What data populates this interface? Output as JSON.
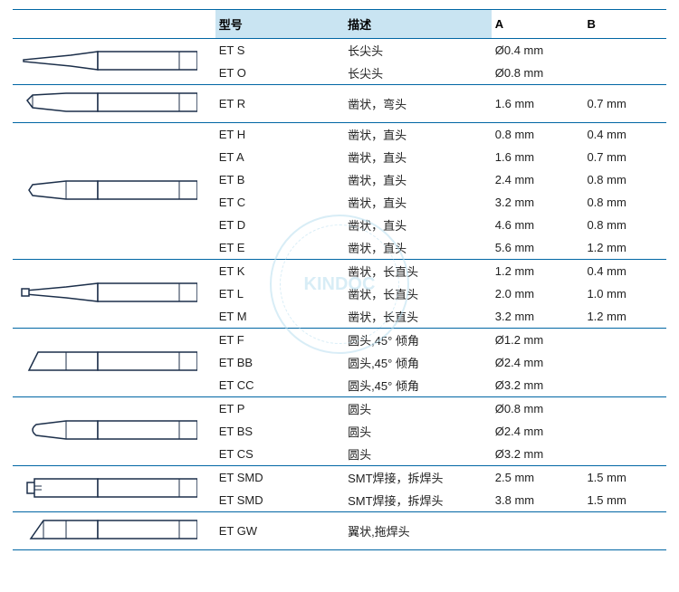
{
  "table": {
    "columns": {
      "icon": "",
      "model": "型号",
      "desc": "描述",
      "a": "A",
      "b": "B"
    },
    "header_bg": "#c9e4f2",
    "border_color": "#0066a4",
    "groups": [
      {
        "tip_shape": "conical",
        "rows": [
          {
            "model": "ET S",
            "desc": "长尖头",
            "a": "Ø0.4 mm",
            "b": ""
          },
          {
            "model": "ET O",
            "desc": "长尖头",
            "a": "Ø0.8 mm",
            "b": ""
          }
        ]
      },
      {
        "tip_shape": "chisel-bent",
        "rows": [
          {
            "model": "ET R",
            "desc": "凿状，弯头",
            "a": "1.6 mm",
            "b": "0.7 mm"
          }
        ]
      },
      {
        "tip_shape": "chisel",
        "rows": [
          {
            "model": "ET H",
            "desc": "凿状，直头",
            "a": "0.8 mm",
            "b": "0.4 mm"
          },
          {
            "model": "ET A",
            "desc": "凿状，直头",
            "a": "1.6 mm",
            "b": "0.7 mm"
          },
          {
            "model": "ET B",
            "desc": "凿状，直头",
            "a": "2.4 mm",
            "b": "0.8 mm"
          },
          {
            "model": "ET C",
            "desc": "凿状，直头",
            "a": "3.2 mm",
            "b": "0.8 mm"
          },
          {
            "model": "ET D",
            "desc": "凿状，直头",
            "a": "4.6 mm",
            "b": "0.8 mm"
          },
          {
            "model": "ET E",
            "desc": "凿状，直头",
            "a": "5.6 mm",
            "b": "1.2 mm"
          }
        ]
      },
      {
        "tip_shape": "chisel-long",
        "rows": [
          {
            "model": "ET K",
            "desc": "凿状，长直头",
            "a": "1.2 mm",
            "b": "0.4 mm"
          },
          {
            "model": "ET L",
            "desc": "凿状，长直头",
            "a": "2.0 mm",
            "b": "1.0 mm"
          },
          {
            "model": "ET M",
            "desc": "凿状，长直头",
            "a": "3.2 mm",
            "b": "1.2 mm"
          }
        ]
      },
      {
        "tip_shape": "round-bevel",
        "rows": [
          {
            "model": "ET F",
            "desc": "圆头,45° 倾角",
            "a": "Ø1.2 mm",
            "b": ""
          },
          {
            "model": "ET BB",
            "desc": "圆头,45° 倾角",
            "a": "Ø2.4 mm",
            "b": ""
          },
          {
            "model": "ET CC",
            "desc": "圆头,45° 倾角",
            "a": "Ø3.2 mm",
            "b": ""
          }
        ]
      },
      {
        "tip_shape": "round",
        "rows": [
          {
            "model": "ET P",
            "desc": "圆头",
            "a": "Ø0.8 mm",
            "b": ""
          },
          {
            "model": "ET BS",
            "desc": "圆头",
            "a": "Ø2.4 mm",
            "b": ""
          },
          {
            "model": "ET CS",
            "desc": "圆头",
            "a": "Ø3.2 mm",
            "b": ""
          }
        ]
      },
      {
        "tip_shape": "smd",
        "rows": [
          {
            "model": "ET SMD",
            "desc": "SMT焊接，拆焊头",
            "a": "2.5 mm",
            "b": "1.5 mm"
          },
          {
            "model": "ET SMD",
            "desc": "SMT焊接，拆焊头",
            "a": "3.8 mm",
            "b": "1.5 mm"
          }
        ]
      },
      {
        "tip_shape": "gullwing",
        "rows": [
          {
            "model": "ET GW",
            "desc": "翼状,拖焊头",
            "a": "",
            "b": ""
          }
        ]
      }
    ]
  },
  "watermark_text": "KINDOC",
  "tip_stroke": "#1c2f4a",
  "tip_stroke_width": 1.5
}
